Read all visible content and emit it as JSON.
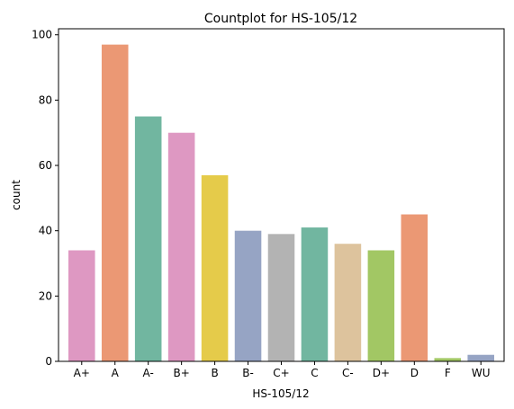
{
  "chart_data": {
    "type": "bar",
    "title": "Countplot for HS-105/12",
    "xlabel": "HS-105/12",
    "ylabel": "count",
    "categories": [
      "A+",
      "A",
      "A-",
      "B+",
      "B",
      "B-",
      "C+",
      "C",
      "C-",
      "D+",
      "D",
      "F",
      "WU"
    ],
    "values": [
      34,
      97,
      75,
      70,
      57,
      40,
      39,
      41,
      36,
      34,
      45,
      1,
      2
    ],
    "colors": [
      "#de98c2",
      "#eb9874",
      "#71b6a0",
      "#de98c2",
      "#e5cb4a",
      "#96a4c4",
      "#b3b3b3",
      "#71b6a0",
      "#ddc39d",
      "#a2c764",
      "#eb9874",
      "#a2c764",
      "#96a4c4"
    ],
    "ylim": [
      0,
      101.85
    ],
    "yticks": [
      0,
      20,
      40,
      60,
      80,
      100
    ],
    "grid": false,
    "legend": "none"
  }
}
